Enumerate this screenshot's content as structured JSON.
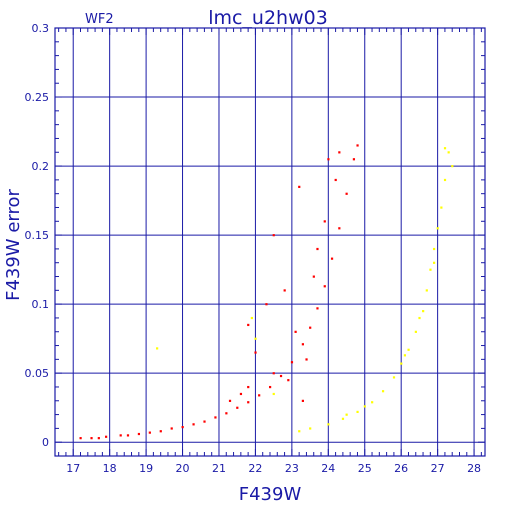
{
  "chart_data": {
    "type": "scatter",
    "title": "lmc_u2hw03",
    "panel_label": "WF2",
    "xlabel": "F439W",
    "ylabel": "F439W error",
    "xlim": [
      16.5,
      28.3
    ],
    "ylim": [
      -0.01,
      0.3
    ],
    "x_ticks": [
      "17",
      "18",
      "19",
      "20",
      "21",
      "22",
      "23",
      "24",
      "25",
      "26",
      "27",
      "28"
    ],
    "y_ticks": [
      "0",
      "0.05",
      "0.1",
      "0.15",
      "0.2",
      "0.25",
      "0.3"
    ],
    "grid": true,
    "series": [
      {
        "color": "#ff0000",
        "points": [
          [
            17.2,
            0.003
          ],
          [
            17.5,
            0.003
          ],
          [
            17.7,
            0.003
          ],
          [
            17.9,
            0.004
          ],
          [
            18.3,
            0.005
          ],
          [
            18.5,
            0.005
          ],
          [
            18.8,
            0.006
          ],
          [
            19.1,
            0.007
          ],
          [
            19.4,
            0.008
          ],
          [
            19.7,
            0.01
          ],
          [
            20.0,
            0.011
          ],
          [
            20.3,
            0.013
          ],
          [
            20.6,
            0.015
          ],
          [
            20.9,
            0.018
          ],
          [
            21.2,
            0.021
          ],
          [
            21.5,
            0.025
          ],
          [
            21.8,
            0.029
          ],
          [
            22.1,
            0.034
          ],
          [
            22.4,
            0.04
          ],
          [
            22.7,
            0.048
          ],
          [
            23.0,
            0.058
          ],
          [
            23.3,
            0.071
          ],
          [
            23.5,
            0.083
          ],
          [
            23.7,
            0.097
          ],
          [
            23.9,
            0.113
          ],
          [
            24.1,
            0.133
          ],
          [
            24.3,
            0.155
          ],
          [
            24.5,
            0.18
          ],
          [
            24.7,
            0.205
          ],
          [
            24.8,
            0.215
          ],
          [
            23.4,
            0.06
          ],
          [
            22.9,
            0.045
          ],
          [
            22.5,
            0.05
          ],
          [
            23.1,
            0.08
          ],
          [
            23.6,
            0.12
          ],
          [
            23.9,
            0.16
          ],
          [
            24.0,
            0.205
          ],
          [
            24.3,
            0.21
          ],
          [
            23.2,
            0.185
          ],
          [
            22.5,
            0.15
          ],
          [
            22.3,
            0.1
          ],
          [
            21.8,
            0.085
          ],
          [
            21.8,
            0.04
          ],
          [
            21.6,
            0.035
          ],
          [
            21.3,
            0.03
          ],
          [
            22.0,
            0.065
          ],
          [
            22.8,
            0.11
          ],
          [
            23.7,
            0.14
          ],
          [
            24.2,
            0.19
          ],
          [
            23.3,
            0.03
          ]
        ]
      },
      {
        "color": "#ffff00",
        "points": [
          [
            23.2,
            0.008
          ],
          [
            23.5,
            0.01
          ],
          [
            24.0,
            0.013
          ],
          [
            24.4,
            0.017
          ],
          [
            24.8,
            0.022
          ],
          [
            25.2,
            0.029
          ],
          [
            25.5,
            0.037
          ],
          [
            25.8,
            0.047
          ],
          [
            26.0,
            0.057
          ],
          [
            26.2,
            0.067
          ],
          [
            26.4,
            0.08
          ],
          [
            26.6,
            0.095
          ],
          [
            26.7,
            0.11
          ],
          [
            26.8,
            0.125
          ],
          [
            26.9,
            0.14
          ],
          [
            27.0,
            0.155
          ],
          [
            27.1,
            0.17
          ],
          [
            27.2,
            0.19
          ],
          [
            27.3,
            0.21
          ],
          [
            27.4,
            0.2
          ],
          [
            27.2,
            0.213
          ],
          [
            26.9,
            0.13
          ],
          [
            26.5,
            0.09
          ],
          [
            26.1,
            0.063
          ],
          [
            19.3,
            0.068
          ],
          [
            21.9,
            0.09
          ],
          [
            22.0,
            0.075
          ],
          [
            22.5,
            0.035
          ],
          [
            24.5,
            0.02
          ],
          [
            25.0,
            0.026
          ]
        ]
      }
    ]
  }
}
